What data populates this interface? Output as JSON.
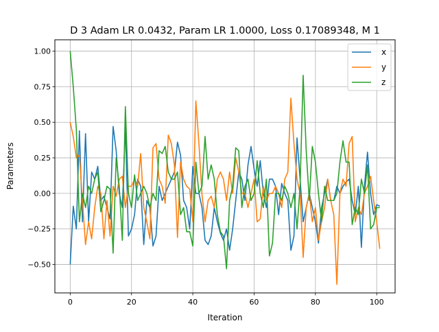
{
  "chart_data": {
    "type": "line",
    "title": "D 3 Adam LR 0.0432, Param LR 1.0000, Loss 0.17089348, M 1",
    "xlabel": "Iteration",
    "ylabel": "Parameters",
    "xlim": [
      -5,
      106
    ],
    "ylim": [
      -0.7,
      1.08
    ],
    "xticks": [
      0,
      20,
      40,
      60,
      80,
      100
    ],
    "xtick_labels": [
      "0",
      "20",
      "40",
      "60",
      "80",
      "100"
    ],
    "yticks": [
      -0.5,
      -0.25,
      0.0,
      0.25,
      0.5,
      0.75,
      1.0
    ],
    "ytick_labels": [
      "−0.50",
      "−0.25",
      "0.00",
      "0.25",
      "0.50",
      "0.75",
      "1.00"
    ],
    "grid": true,
    "legend": "top-right",
    "x_start": 0,
    "x_step": 1,
    "series": [
      {
        "name": "x",
        "color": "#1f77b4",
        "values": [
          -0.5,
          -0.09,
          -0.25,
          0.44,
          -0.2,
          0.42,
          -0.2,
          0.15,
          0.1,
          0.19,
          -0.05,
          -0.02,
          -0.1,
          -0.18,
          0.47,
          0.3,
          0.0,
          -0.1,
          0.47,
          -0.3,
          -0.25,
          -0.15,
          0.1,
          0.05,
          -0.36,
          -0.05,
          -0.1,
          -0.37,
          -0.3,
          0.05,
          -0.05,
          0.0,
          0.05,
          0.1,
          0.15,
          0.36,
          0.27,
          -0.05,
          -0.1,
          -0.25,
          0.19,
          0.0,
          0.0,
          -0.1,
          -0.33,
          -0.36,
          -0.3,
          -0.1,
          -0.2,
          -0.28,
          -0.33,
          -0.25,
          -0.4,
          -0.25,
          -0.05,
          0.15,
          0.1,
          -0.05,
          0.2,
          0.33,
          0.17,
          0.05,
          0.23,
          0.0,
          -0.1,
          0.1,
          0.1,
          0.05,
          -0.15,
          0.07,
          0.0,
          -0.05,
          -0.4,
          -0.3,
          0.39,
          0.1,
          -0.2,
          -0.1,
          0.0,
          -0.1,
          -0.2,
          -0.35,
          -0.1,
          0.0,
          0.1,
          -0.05,
          -0.05,
          0.05,
          0.0,
          0.05,
          0.08,
          0.1,
          -0.05,
          -0.15,
          0.05,
          -0.38,
          0.05,
          0.29,
          0.0,
          -0.15,
          -0.08,
          -0.09
        ]
      },
      {
        "name": "y",
        "color": "#ff7f0e",
        "values": [
          0.5,
          0.4,
          0.25,
          0.27,
          -0.05,
          -0.36,
          -0.2,
          -0.32,
          -0.1,
          0.05,
          0.0,
          -0.32,
          -0.05,
          -0.3,
          0.05,
          -0.02,
          0.1,
          0.12,
          -0.1,
          0.05,
          0.05,
          0.1,
          0.05,
          0.28,
          -0.1,
          -0.2,
          -0.32,
          0.32,
          0.35,
          0.1,
          0.05,
          -0.07,
          0.41,
          0.35,
          0.2,
          -0.31,
          0.22,
          0.1,
          0.05,
          0.03,
          -0.2,
          0.65,
          0.35,
          -0.01,
          -0.2,
          -0.05,
          -0.02,
          -0.1,
          0.1,
          0.15,
          0.1,
          -0.05,
          0.15,
          0.0,
          0.25,
          0.15,
          0.0,
          0.0,
          -0.1,
          0.0,
          0.1,
          -0.2,
          -0.18,
          0.05,
          -0.05,
          0.0,
          0.0,
          0.05,
          0.0,
          -0.1,
          0.1,
          0.15,
          0.67,
          0.35,
          0.1,
          0.0,
          -0.45,
          -0.1,
          0.0,
          -0.2,
          -0.1,
          -0.33,
          -0.2,
          -0.1,
          0.1,
          -0.05,
          -0.15,
          -0.64,
          0.0,
          0.1,
          0.05,
          0.35,
          0.4,
          -0.2,
          -0.1,
          -0.15,
          0.0,
          0.05,
          0.12,
          -0.05,
          -0.2,
          -0.39
        ]
      },
      {
        "name": "z",
        "color": "#2ca02c",
        "values": [
          1.0,
          0.75,
          0.45,
          -0.2,
          0.0,
          -0.1,
          0.05,
          0.0,
          0.1,
          0.15,
          -0.13,
          -0.05,
          0.05,
          0.03,
          -0.42,
          0.25,
          0.05,
          -0.33,
          0.61,
          0.0,
          -0.1,
          0.13,
          -0.05,
          0.0,
          0.05,
          0.0,
          -0.1,
          0.0,
          -0.05,
          0.3,
          0.28,
          0.33,
          0.15,
          0.1,
          0.1,
          0.15,
          -0.15,
          -0.1,
          -0.27,
          -0.27,
          -0.37,
          0.22,
          0.0,
          0.05,
          0.4,
          0.1,
          0.2,
          0.1,
          -0.15,
          -0.27,
          -0.3,
          -0.53,
          -0.05,
          0.05,
          0.32,
          0.3,
          -0.1,
          0.05,
          0.1,
          -0.05,
          0.0,
          0.23,
          0.0,
          -0.1,
          0.1,
          -0.44,
          -0.35,
          0.0,
          0.0,
          -0.05,
          0.05,
          0.0,
          -0.1,
          0.0,
          -0.25,
          0.05,
          0.83,
          0.3,
          -0.05,
          0.33,
          0.22,
          0.0,
          -0.2,
          0.05,
          -0.05,
          -0.05,
          -0.05,
          0.0,
          0.22,
          0.37,
          0.22,
          0.22,
          -0.22,
          -0.1,
          -0.15,
          0.1,
          0.0,
          0.2,
          -0.25,
          -0.22,
          -0.1,
          -0.1
        ]
      }
    ]
  }
}
